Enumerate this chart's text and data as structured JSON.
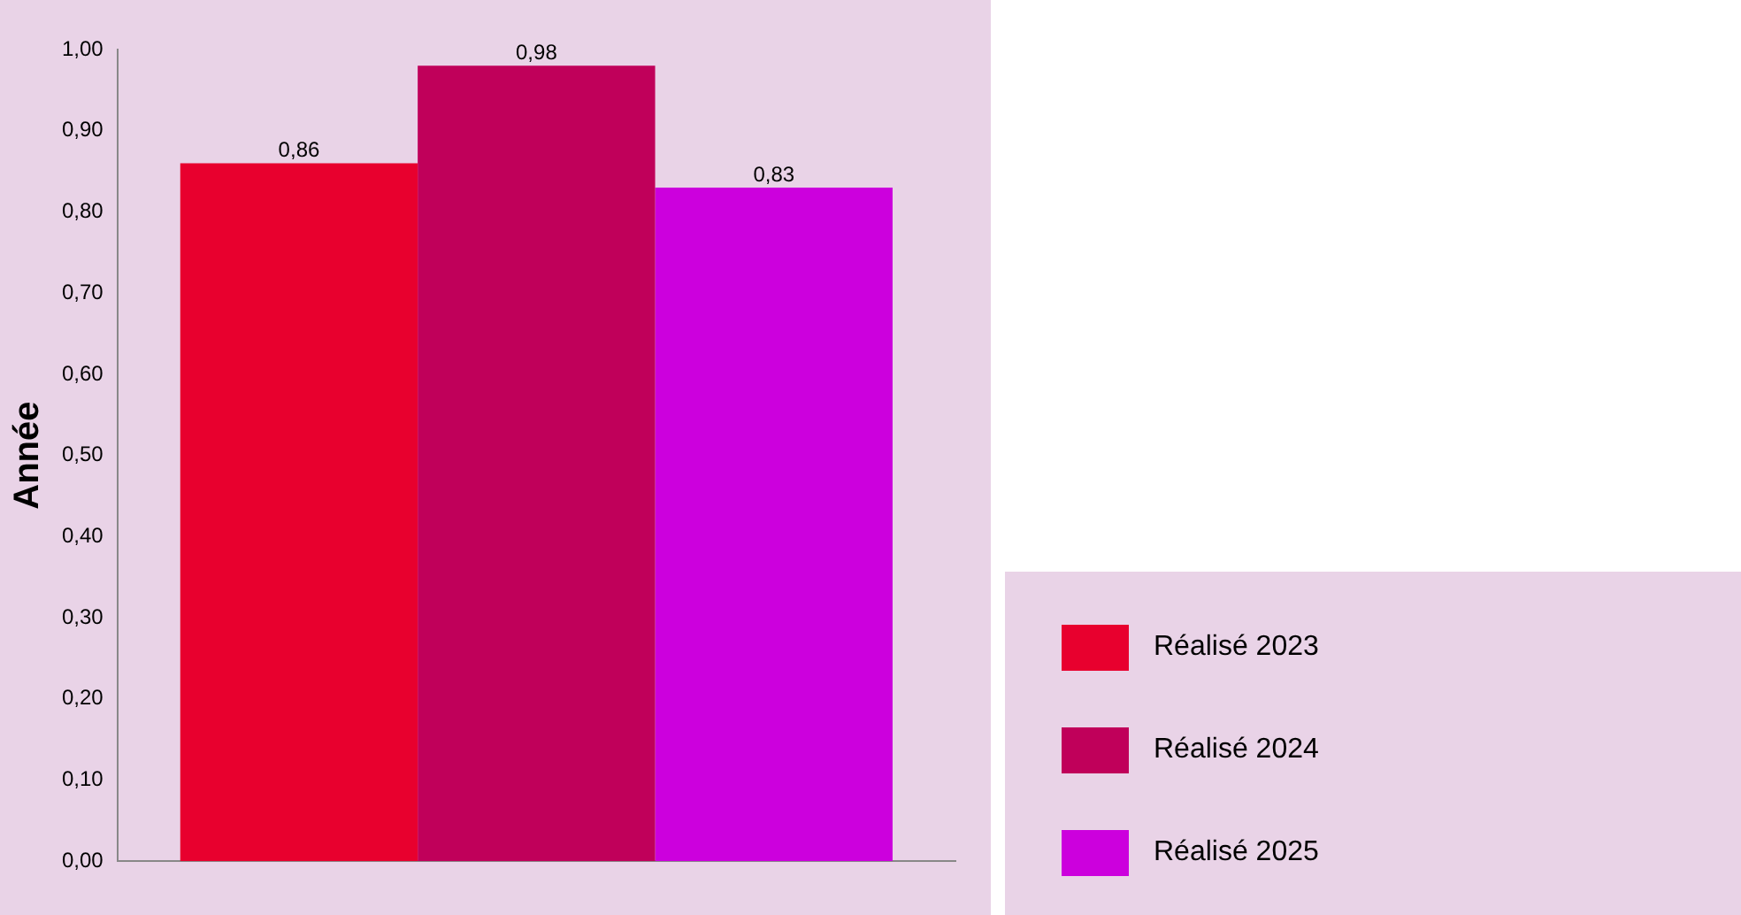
{
  "chart_data": {
    "type": "bar",
    "ylabel": "Année",
    "categories": [
      null
    ],
    "series": [
      {
        "name": "Réalisé 2023",
        "color": "#e8002e",
        "values": [
          0.86
        ],
        "value_labels": [
          "0,86"
        ]
      },
      {
        "name": "Réalisé 2024",
        "color": "#c0005a",
        "values": [
          0.98
        ],
        "value_labels": [
          "0,98"
        ]
      },
      {
        "name": "Réalisé 2025",
        "color": "#cc00dd",
        "values": [
          0.83
        ],
        "value_labels": [
          "0,83"
        ]
      }
    ],
    "ylim": [
      0,
      1
    ],
    "yticks": [
      {
        "value": 0,
        "label": "0,00"
      },
      {
        "value": 0.1,
        "label": "0,10"
      },
      {
        "value": 0.2,
        "label": "0,20"
      },
      {
        "value": 0.3,
        "label": "0,30"
      },
      {
        "value": 0.4,
        "label": "0,40"
      },
      {
        "value": 0.5,
        "label": "0,50"
      },
      {
        "value": 0.6,
        "label": "0,60"
      },
      {
        "value": 0.7,
        "label": "0,70"
      },
      {
        "value": 0.8,
        "label": "0,80"
      },
      {
        "value": 0.9,
        "label": "0,90"
      },
      {
        "value": 1,
        "label": "1,00"
      }
    ],
    "grid": false,
    "legend": "bottom right"
  }
}
